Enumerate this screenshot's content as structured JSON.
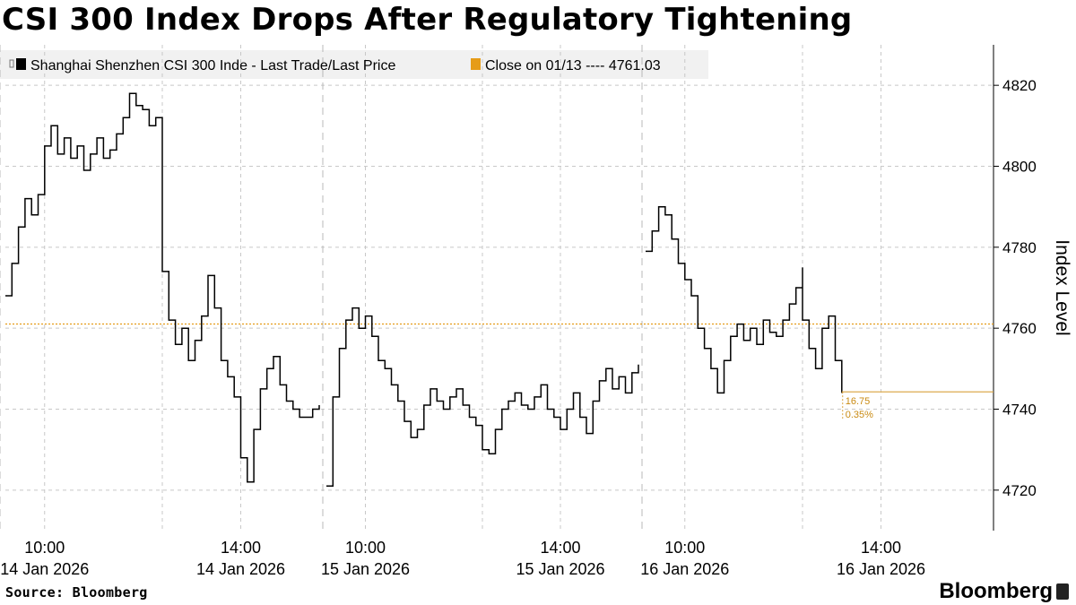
{
  "page": {
    "title": "CSI 300 Index Drops After Regulatory Tightening",
    "source": "Source: Bloomberg",
    "brand": "Bloomberg"
  },
  "chart_data": {
    "type": "line",
    "title": "CSI 300 Index Drops After Regulatory Tightening",
    "ylabel": "Index Level",
    "ylim": [
      4710,
      4830
    ],
    "y_ticks": [
      4720,
      4740,
      4760,
      4780,
      4800,
      4820
    ],
    "grid": true,
    "legend_position": "top-left",
    "colors": {
      "price": "#000000",
      "reference": "#e69c18",
      "grid": "#c8c8c8"
    },
    "x_ticks": [
      {
        "time": "2026-01-14T10:00",
        "label_time": "10:00",
        "label_date": "14 Jan 2026"
      },
      {
        "time": "2026-01-14T14:00",
        "label_time": "14:00",
        "label_date": "14 Jan 2026"
      },
      {
        "time": "2026-01-15T10:00",
        "label_time": "10:00",
        "label_date": "15 Jan 2026"
      },
      {
        "time": "2026-01-15T14:00",
        "label_time": "14:00",
        "label_date": "15 Jan 2026"
      },
      {
        "time": "2026-01-16T10:00",
        "label_time": "10:00",
        "label_date": "16 Jan 2026"
      },
      {
        "time": "2026-01-16T14:00",
        "label_time": "14:00",
        "label_date": "16 Jan 2026"
      }
    ],
    "reference_line": {
      "name": "Close on 01/13 ---- 4761.03",
      "value": 4761.03
    },
    "last_value_annotation": {
      "value": 4744.28,
      "change": "16.75",
      "change_pct": "0.35%"
    },
    "series": [
      {
        "name": "Shanghai Shenzhen CSI 300 Inde - Last Trade/Last Price",
        "segments": [
          {
            "x": [
              "2026-01-14T09:30",
              "2026-01-14T09:35",
              "2026-01-14T09:40",
              "2026-01-14T09:45",
              "2026-01-14T09:50",
              "2026-01-14T09:55",
              "2026-01-14T10:00",
              "2026-01-14T10:05",
              "2026-01-14T10:10",
              "2026-01-14T10:15",
              "2026-01-14T10:20",
              "2026-01-14T10:25",
              "2026-01-14T10:30",
              "2026-01-14T10:35",
              "2026-01-14T10:40",
              "2026-01-14T10:45",
              "2026-01-14T10:50",
              "2026-01-14T10:55",
              "2026-01-14T11:00",
              "2026-01-14T11:05",
              "2026-01-14T11:10",
              "2026-01-14T11:15",
              "2026-01-14T11:20",
              "2026-01-14T11:25",
              "2026-01-14T11:30",
              "2026-01-14T13:00",
              "2026-01-14T13:05",
              "2026-01-14T13:10",
              "2026-01-14T13:15",
              "2026-01-14T13:20",
              "2026-01-14T13:25",
              "2026-01-14T13:30",
              "2026-01-14T13:35",
              "2026-01-14T13:40",
              "2026-01-14T13:45",
              "2026-01-14T13:50",
              "2026-01-14T13:55",
              "2026-01-14T14:00",
              "2026-01-14T14:05",
              "2026-01-14T14:10",
              "2026-01-14T14:15",
              "2026-01-14T14:20",
              "2026-01-14T14:25",
              "2026-01-14T14:30",
              "2026-01-14T14:35",
              "2026-01-14T14:40",
              "2026-01-14T14:45",
              "2026-01-14T14:50",
              "2026-01-14T14:55",
              "2026-01-14T15:00"
            ],
            "y": [
              4768,
              4776,
              4785,
              4792,
              4788,
              4793,
              4805,
              4810,
              4803,
              4807,
              4802,
              4805,
              4799,
              4803,
              4807,
              4802,
              4804,
              4808,
              4812,
              4818,
              4815,
              4814,
              4810,
              4812,
              4790,
              4774,
              4762,
              4756,
              4760,
              4752,
              4757,
              4763,
              4773,
              4765,
              4752,
              4748,
              4743,
              4728,
              4722,
              4735,
              4745,
              4750,
              4753,
              4746,
              4742,
              4740,
              4738,
              4738,
              4740,
              4741
            ]
          },
          {
            "x": [
              "2026-01-15T09:30",
              "2026-01-15T09:35",
              "2026-01-15T09:40",
              "2026-01-15T09:45",
              "2026-01-15T09:50",
              "2026-01-15T09:55",
              "2026-01-15T10:00",
              "2026-01-15T10:05",
              "2026-01-15T10:10",
              "2026-01-15T10:15",
              "2026-01-15T10:20",
              "2026-01-15T10:25",
              "2026-01-15T10:30",
              "2026-01-15T10:35",
              "2026-01-15T10:40",
              "2026-01-15T10:45",
              "2026-01-15T10:50",
              "2026-01-15T10:55",
              "2026-01-15T11:00",
              "2026-01-15T11:05",
              "2026-01-15T11:10",
              "2026-01-15T11:15",
              "2026-01-15T11:20",
              "2026-01-15T11:25",
              "2026-01-15T11:30",
              "2026-01-15T13:00",
              "2026-01-15T13:05",
              "2026-01-15T13:10",
              "2026-01-15T13:15",
              "2026-01-15T13:20",
              "2026-01-15T13:25",
              "2026-01-15T13:30",
              "2026-01-15T13:35",
              "2026-01-15T13:40",
              "2026-01-15T13:45",
              "2026-01-15T13:50",
              "2026-01-15T13:55",
              "2026-01-15T14:00",
              "2026-01-15T14:05",
              "2026-01-15T14:10",
              "2026-01-15T14:15",
              "2026-01-15T14:20",
              "2026-01-15T14:25",
              "2026-01-15T14:30",
              "2026-01-15T14:35",
              "2026-01-15T14:40",
              "2026-01-15T14:45",
              "2026-01-15T14:50",
              "2026-01-15T14:55",
              "2026-01-15T15:00"
            ],
            "y": [
              4721,
              4743,
              4755,
              4762,
              4765,
              4760,
              4763,
              4758,
              4752,
              4750,
              4746,
              4742,
              4737,
              4733,
              4735,
              4741,
              4745,
              4742,
              4740,
              4743,
              4745,
              4741,
              4738,
              4736,
              4733,
              4730,
              4729,
              4735,
              4740,
              4742,
              4744,
              4741,
              4740,
              4743,
              4746,
              4740,
              4738,
              4735,
              4740,
              4744,
              4738,
              4734,
              4742,
              4747,
              4750,
              4745,
              4748,
              4744,
              4749,
              4751
            ]
          },
          {
            "x": [
              "2026-01-16T09:30",
              "2026-01-16T09:35",
              "2026-01-16T09:40",
              "2026-01-16T09:45",
              "2026-01-16T09:50",
              "2026-01-16T09:55",
              "2026-01-16T10:00",
              "2026-01-16T10:05",
              "2026-01-16T10:10",
              "2026-01-16T10:15",
              "2026-01-16T10:20",
              "2026-01-16T10:25",
              "2026-01-16T10:30",
              "2026-01-16T10:35",
              "2026-01-16T10:40",
              "2026-01-16T10:45",
              "2026-01-16T10:50",
              "2026-01-16T10:55",
              "2026-01-16T11:00",
              "2026-01-16T11:05",
              "2026-01-16T11:10",
              "2026-01-16T11:15",
              "2026-01-16T11:20",
              "2026-01-16T11:25",
              "2026-01-16T11:30",
              "2026-01-16T13:00",
              "2026-01-16T13:05",
              "2026-01-16T13:10",
              "2026-01-16T13:15",
              "2026-01-16T13:20",
              "2026-01-16T13:25",
              "2026-01-16T13:30"
            ],
            "y": [
              4779,
              4784,
              4790,
              4788,
              4782,
              4776,
              4772,
              4768,
              4760,
              4755,
              4750,
              4744,
              4752,
              4758,
              4761,
              4757,
              4760,
              4756,
              4762,
              4759,
              4758,
              4762,
              4766,
              4770,
              4775,
              4762,
              4755,
              4750,
              4760,
              4763,
              4752,
              4744
            ]
          }
        ]
      }
    ]
  }
}
